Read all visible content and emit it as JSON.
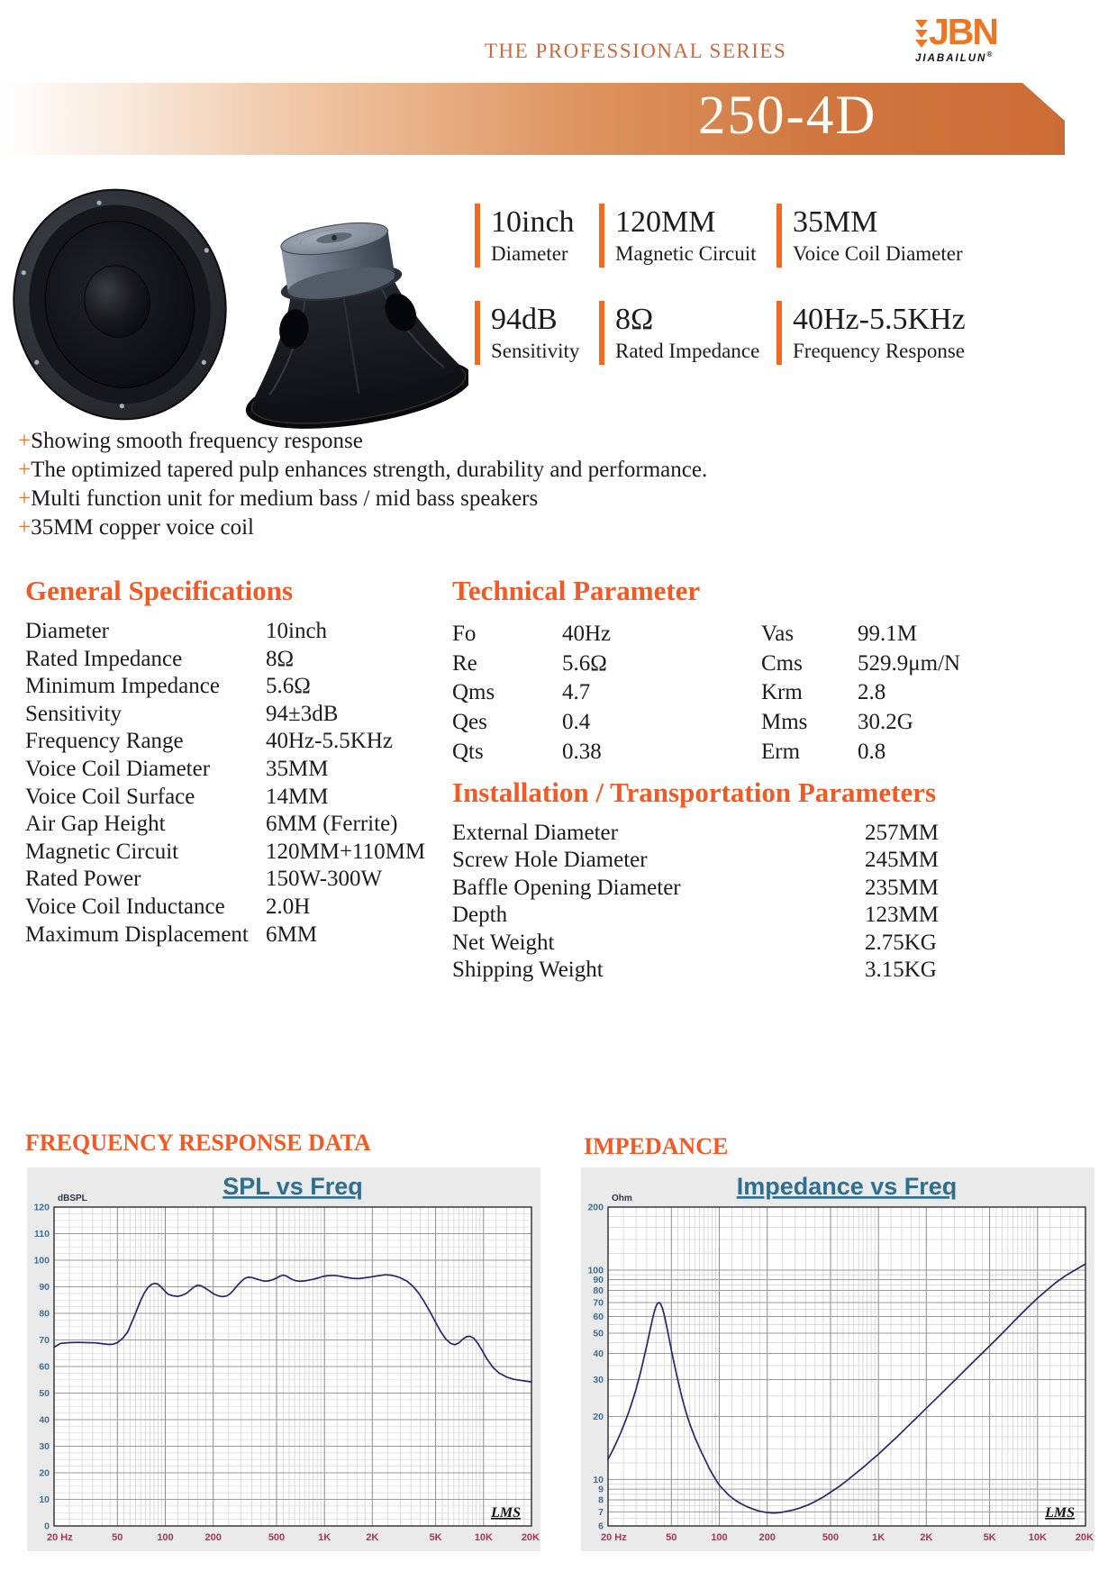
{
  "colors": {
    "accent": "#f15a25",
    "highlight_bar": "#f26a22",
    "banner_orange": "#cc6c35",
    "series_text": "#c8693f",
    "logo_orange": "#ee7623",
    "chart_title": "#2e6f8f",
    "x_tick": "#a83458",
    "y_tick": "#3c6e96",
    "curve": "#26266e"
  },
  "header": {
    "series_text": "THE PROFESSIONAL SERIES",
    "logo_text": "JBN",
    "logo_sub": "JIABAILUN",
    "logo_mark": "®",
    "model": "250-4D"
  },
  "highlights": [
    {
      "value": "10inch",
      "label": "Diameter"
    },
    {
      "value": "120MM",
      "label": "Magnetic Circuit"
    },
    {
      "value": "35MM",
      "label": "Voice Coil Diameter"
    },
    {
      "value": "94dB",
      "label": "Sensitivity"
    },
    {
      "value": "8Ω",
      "label": "Rated Impedance"
    },
    {
      "value": "40Hz-5.5KHz",
      "label": "Frequency Response"
    }
  ],
  "features": {
    "prefix": "+",
    "items": [
      "Showing smooth frequency response",
      "The optimized tapered pulp enhances strength, durability and performance.",
      "Multi function unit for medium bass / mid bass speakers",
      "35MM copper voice coil"
    ]
  },
  "general": {
    "title": "General Specifications",
    "rows": [
      {
        "label": "Diameter",
        "value": "10inch"
      },
      {
        "label": "Rated Impedance",
        "value": "8Ω"
      },
      {
        "label": "Minimum Impedance",
        "value": "5.6Ω"
      },
      {
        "label": "Sensitivity",
        "value": "94±3dB"
      },
      {
        "label": "Frequency Range",
        "value": "40Hz-5.5KHz"
      },
      {
        "label": "Voice Coil Diameter",
        "value": "35MM"
      },
      {
        "label": "Voice Coil Surface",
        "value": "14MM"
      },
      {
        "label": "Air Gap Height",
        "value": "6MM (Ferrite)"
      },
      {
        "label": "Magnetic Circuit",
        "value": "120MM+110MM"
      },
      {
        "label": "Rated Power",
        "value": "150W-300W"
      },
      {
        "label": "Voice Coil Inductance",
        "value": "2.0H"
      },
      {
        "label": "Maximum Displacement",
        "value": "6MM"
      }
    ]
  },
  "technical": {
    "title": "Technical Parameter",
    "left_rows": [
      {
        "label": "Fo",
        "value": "40Hz"
      },
      {
        "label": "Re",
        "value": "5.6Ω"
      },
      {
        "label": "Qms",
        "value": "4.7"
      },
      {
        "label": "Qes",
        "value": "0.4"
      },
      {
        "label": "Qts",
        "value": "0.38"
      }
    ],
    "right_rows": [
      {
        "label": "Vas",
        "value": "99.1M"
      },
      {
        "label": "Cms",
        "value": "529.9μm/N"
      },
      {
        "label": "Krm",
        "value": "2.8"
      },
      {
        "label": "Mms",
        "value": "30.2G"
      },
      {
        "label": "Erm",
        "value": "0.8"
      }
    ]
  },
  "installation": {
    "title": "Installation / Transportation Parameters",
    "rows": [
      {
        "label": "External Diameter",
        "value": "257MM"
      },
      {
        "label": "Screw Hole Diameter",
        "value": "245MM"
      },
      {
        "label": "Baffle Opening Diameter",
        "value": "235MM"
      },
      {
        "label": "Depth",
        "value": "123MM"
      },
      {
        "label": "Net Weight",
        "value": "2.75KG"
      },
      {
        "label": "Shipping Weight",
        "value": "3.15KG"
      }
    ]
  },
  "charts_section": {
    "left_heading": "FREQUENCY RESPONSE DATA",
    "right_heading": "IMPEDANCE"
  },
  "chart_data": [
    {
      "type": "line",
      "title": "SPL vs Freq",
      "y_unit_label": "dBSPL",
      "x_scale": "log",
      "y_scale": "linear",
      "xlim": [
        20,
        20000
      ],
      "ylim": [
        0,
        120
      ],
      "y_ticks": [
        0,
        10,
        20,
        30,
        40,
        50,
        60,
        70,
        80,
        90,
        100,
        110,
        120
      ],
      "x_ticks": [
        {
          "v": 20,
          "label": "20 Hz"
        },
        {
          "v": 50,
          "label": "50"
        },
        {
          "v": 100,
          "label": "100"
        },
        {
          "v": 200,
          "label": "200"
        },
        {
          "v": 500,
          "label": "500"
        },
        {
          "v": 1000,
          "label": "1K"
        },
        {
          "v": 2000,
          "label": "2K"
        },
        {
          "v": 5000,
          "label": "5K"
        },
        {
          "v": 10000,
          "label": "10K"
        },
        {
          "v": 20000,
          "label": "20K"
        }
      ],
      "watermark": "LMS",
      "grid": true,
      "legend": "none",
      "series": [
        {
          "name": "SPL",
          "points": [
            [
              20,
              67.3
            ],
            [
              22,
              68.7
            ],
            [
              25,
              69
            ],
            [
              28,
              69.1
            ],
            [
              32,
              69
            ],
            [
              36,
              68.9
            ],
            [
              40,
              68.6
            ],
            [
              44,
              68.3
            ],
            [
              47,
              68.4
            ],
            [
              50,
              69
            ],
            [
              54,
              70.6
            ],
            [
              58,
              73
            ],
            [
              62,
              77
            ],
            [
              66,
              81
            ],
            [
              70,
              84.8
            ],
            [
              74,
              87.8
            ],
            [
              78,
              89.8
            ],
            [
              82,
              90.9
            ],
            [
              86,
              91.3
            ],
            [
              90,
              91
            ],
            [
              95,
              89.7
            ],
            [
              100,
              88.2
            ],
            [
              105,
              87.1
            ],
            [
              112,
              86.6
            ],
            [
              120,
              86.4
            ],
            [
              128,
              86.8
            ],
            [
              136,
              87.6
            ],
            [
              144,
              88.8
            ],
            [
              152,
              90
            ],
            [
              160,
              90.6
            ],
            [
              168,
              90.4
            ],
            [
              178,
              89.5
            ],
            [
              190,
              88.4
            ],
            [
              202,
              87.3
            ],
            [
              215,
              86.6
            ],
            [
              228,
              86.3
            ],
            [
              242,
              86.5
            ],
            [
              256,
              87.4
            ],
            [
              270,
              88.9
            ],
            [
              285,
              90.6
            ],
            [
              300,
              92
            ],
            [
              315,
              93.1
            ],
            [
              330,
              93.6
            ],
            [
              350,
              93.5
            ],
            [
              370,
              93
            ],
            [
              395,
              92.5
            ],
            [
              420,
              92.1
            ],
            [
              445,
              92.2
            ],
            [
              470,
              92.6
            ],
            [
              500,
              93.3
            ],
            [
              525,
              94
            ],
            [
              550,
              94.4
            ],
            [
              575,
              94.1
            ],
            [
              600,
              93.4
            ],
            [
              630,
              92.7
            ],
            [
              660,
              92.3
            ],
            [
              700,
              92.1
            ],
            [
              750,
              92.2
            ],
            [
              800,
              92.5
            ],
            [
              860,
              92.9
            ],
            [
              920,
              93.4
            ],
            [
              980,
              93.9
            ],
            [
              1050,
              94.2
            ],
            [
              1150,
              94.3
            ],
            [
              1250,
              94
            ],
            [
              1350,
              93.6
            ],
            [
              1500,
              93.2
            ],
            [
              1650,
              93.1
            ],
            [
              1800,
              93.4
            ],
            [
              2000,
              93.8
            ],
            [
              2200,
              94.2
            ],
            [
              2400,
              94.5
            ],
            [
              2600,
              94.4
            ],
            [
              2800,
              94
            ],
            [
              3000,
              93.4
            ],
            [
              3300,
              92.1
            ],
            [
              3600,
              90.2
            ],
            [
              3900,
              87.7
            ],
            [
              4200,
              84.7
            ],
            [
              4600,
              80.7
            ],
            [
              5000,
              76.6
            ],
            [
              5400,
              73
            ],
            [
              5800,
              70.3
            ],
            [
              6200,
              68.7
            ],
            [
              6600,
              68.2
            ],
            [
              7000,
              68.9
            ],
            [
              7400,
              70.3
            ],
            [
              7800,
              71.2
            ],
            [
              8200,
              71.4
            ],
            [
              8700,
              70.6
            ],
            [
              9200,
              68.7
            ],
            [
              9800,
              66
            ],
            [
              10500,
              62.8
            ],
            [
              11500,
              59.6
            ],
            [
              12500,
              57.6
            ],
            [
              14000,
              56
            ],
            [
              15500,
              55.2
            ],
            [
              17500,
              54.7
            ],
            [
              20000,
              54.2
            ]
          ]
        }
      ]
    },
    {
      "type": "line",
      "title": "Impedance vs Freq",
      "y_unit_label": "Ohm",
      "x_scale": "log",
      "y_scale": "log",
      "xlim": [
        20,
        20000
      ],
      "ylim": [
        6,
        200
      ],
      "y_ticks": [
        6,
        7,
        8,
        9,
        10,
        20,
        30,
        40,
        50,
        60,
        70,
        80,
        90,
        100,
        200
      ],
      "x_ticks": [
        {
          "v": 20,
          "label": "20 Hz"
        },
        {
          "v": 50,
          "label": "50"
        },
        {
          "v": 100,
          "label": "100"
        },
        {
          "v": 200,
          "label": "200"
        },
        {
          "v": 500,
          "label": "500"
        },
        {
          "v": 1000,
          "label": "1K"
        },
        {
          "v": 2000,
          "label": "2K"
        },
        {
          "v": 5000,
          "label": "5K"
        },
        {
          "v": 10000,
          "label": "10K"
        },
        {
          "v": 20000,
          "label": "20K"
        }
      ],
      "watermark": "LMS",
      "grid": true,
      "legend": "none",
      "series": [
        {
          "name": "Impedance",
          "points": [
            [
              20,
              12.5
            ],
            [
              21,
              13.4
            ],
            [
              22,
              14.4
            ],
            [
              23,
              15.5
            ],
            [
              24,
              16.7
            ],
            [
              25,
              18
            ],
            [
              26,
              19.4
            ],
            [
              27,
              21
            ],
            [
              28,
              22.8
            ],
            [
              29,
              24.8
            ],
            [
              30,
              27
            ],
            [
              31,
              29.6
            ],
            [
              32,
              32.5
            ],
            [
              33,
              35.8
            ],
            [
              34,
              39.5
            ],
            [
              35,
              43.5
            ],
            [
              36,
              48
            ],
            [
              37,
              53
            ],
            [
              38,
              58
            ],
            [
              39,
              63
            ],
            [
              40,
              67
            ],
            [
              41,
              69.5
            ],
            [
              42,
              70
            ],
            [
              43,
              68.5
            ],
            [
              44,
              65.5
            ],
            [
              45,
              61.5
            ],
            [
              46,
              57
            ],
            [
              47,
              52.5
            ],
            [
              48,
              48.5
            ],
            [
              50,
              41.5
            ],
            [
              52,
              36
            ],
            [
              54,
              31.5
            ],
            [
              56,
              28
            ],
            [
              58,
              25
            ],
            [
              60,
              22.7
            ],
            [
              63,
              20
            ],
            [
              66,
              18
            ],
            [
              70,
              16
            ],
            [
              74,
              14.5
            ],
            [
              78,
              13.3
            ],
            [
              82,
              12.3
            ],
            [
              86,
              11.4
            ],
            [
              90,
              10.7
            ],
            [
              95,
              10
            ],
            [
              100,
              9.4
            ],
            [
              107,
              8.9
            ],
            [
              115,
              8.4
            ],
            [
              125,
              8
            ],
            [
              135,
              7.7
            ],
            [
              150,
              7.4
            ],
            [
              165,
              7.2
            ],
            [
              180,
              7.05
            ],
            [
              200,
              6.95
            ],
            [
              220,
              6.92
            ],
            [
              240,
              6.95
            ],
            [
              260,
              7.02
            ],
            [
              290,
              7.15
            ],
            [
              320,
              7.3
            ],
            [
              360,
              7.55
            ],
            [
              400,
              7.85
            ],
            [
              450,
              8.25
            ],
            [
              500,
              8.7
            ],
            [
              560,
              9.2
            ],
            [
              630,
              9.85
            ],
            [
              710,
              10.6
            ],
            [
              800,
              11.4
            ],
            [
              900,
              12.35
            ],
            [
              1000,
              13.2
            ],
            [
              1150,
              14.6
            ],
            [
              1300,
              15.9
            ],
            [
              1500,
              17.7
            ],
            [
              1700,
              19.4
            ],
            [
              2000,
              21.9
            ],
            [
              2300,
              24.3
            ],
            [
              2700,
              27.4
            ],
            [
              3100,
              30.4
            ],
            [
              3600,
              34
            ],
            [
              4200,
              38.2
            ],
            [
              4900,
              42.8
            ],
            [
              5700,
              48
            ],
            [
              6600,
              53.7
            ],
            [
              7600,
              60
            ],
            [
              8800,
              67
            ],
            [
              10000,
              73.5
            ],
            [
              11500,
              80.5
            ],
            [
              13000,
              87
            ],
            [
              15000,
              94
            ],
            [
              17000,
              99.5
            ],
            [
              20000,
              107
            ]
          ]
        }
      ]
    }
  ]
}
